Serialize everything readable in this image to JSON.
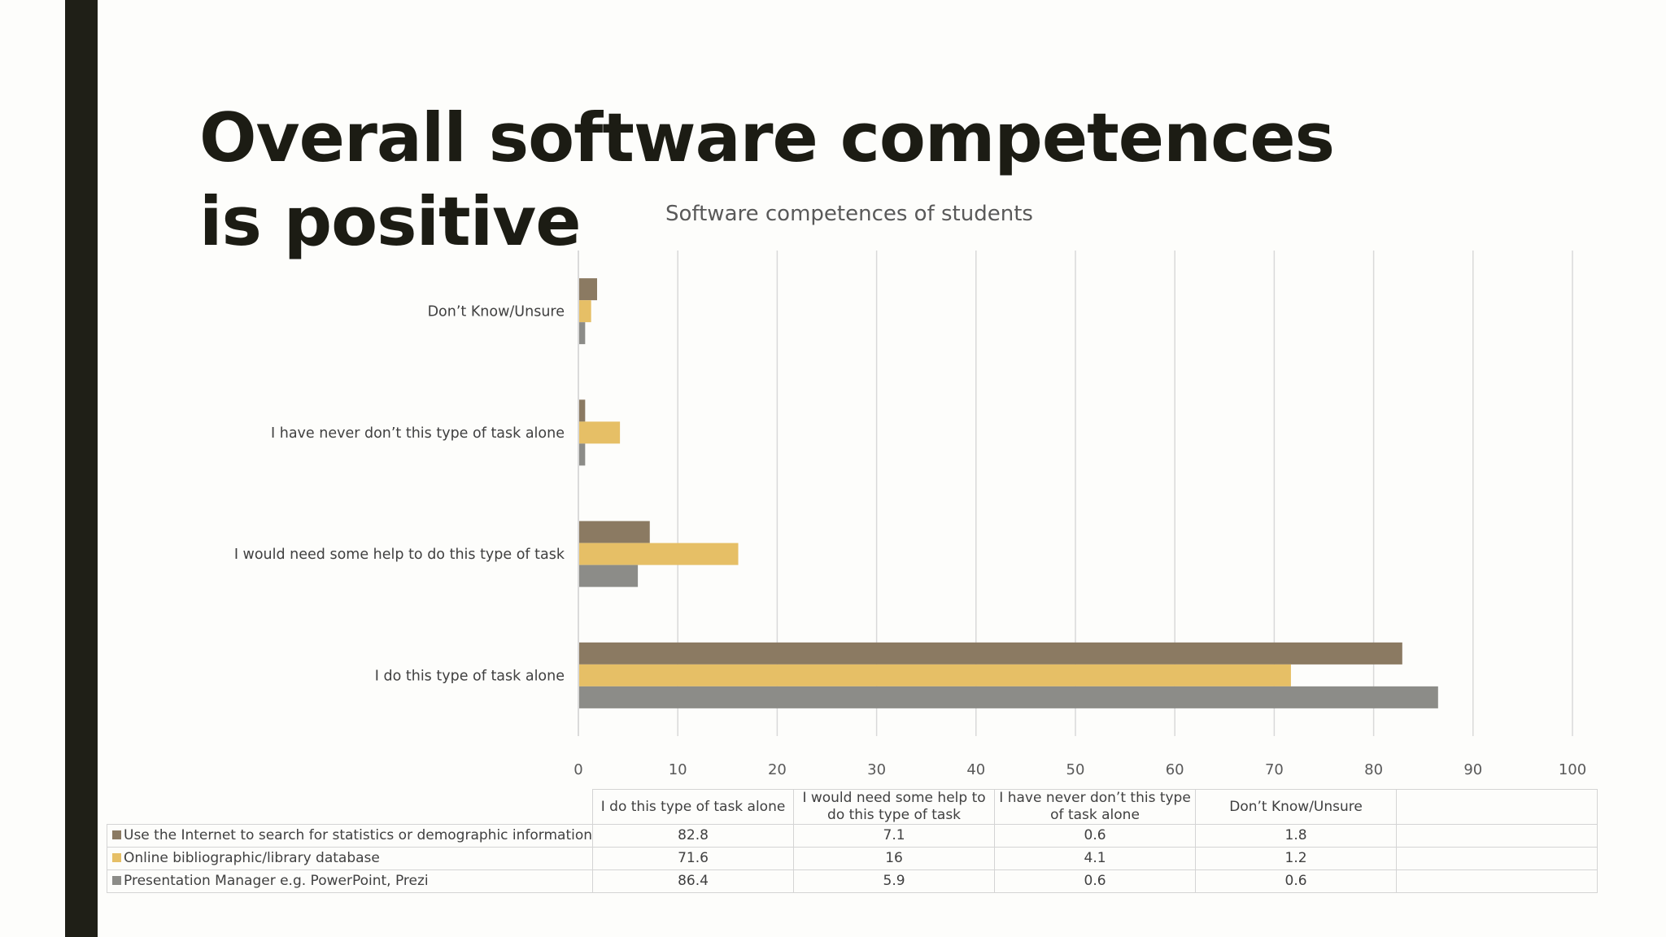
{
  "slide": {
    "title": "Overall software competences is positive"
  },
  "chart_data": {
    "type": "bar",
    "orientation": "horizontal",
    "title": "Software competences of students",
    "categories": [
      "I do this type of task alone",
      "I would need some help to do this type of task",
      "I have never don’t this type of task alone",
      "Don’t Know/Unsure"
    ],
    "series": [
      {
        "name": "Use the Internet to search for statistics or demographic information",
        "color": "#8b7a62",
        "values": [
          82.8,
          7.1,
          0.6,
          1.8
        ]
      },
      {
        "name": "Online bibliographic/library database",
        "color": "#e6bf66",
        "values": [
          71.6,
          16,
          4.1,
          1.2
        ]
      },
      {
        "name": "Presentation Manager e.g. PowerPoint, Prezi",
        "color": "#8c8c88",
        "values": [
          86.4,
          5.9,
          0.6,
          0.6
        ]
      }
    ],
    "xlim": [
      0,
      100
    ],
    "xticks": [
      "0",
      "10",
      "20",
      "30",
      "40",
      "50",
      "60",
      "70",
      "80",
      "90",
      "100"
    ],
    "grid": true,
    "legend": "data-table below chart",
    "table": {
      "headers": [
        "I do this type of task alone",
        "I would need some help to do this type of task",
        "I have never don’t this type of task alone",
        "Don’t Know/Unsure",
        ""
      ],
      "rows": [
        {
          "label": "Use the Internet to search for statistics or demographic information",
          "cells": [
            "82.8",
            "7.1",
            "0.6",
            "1.8",
            ""
          ]
        },
        {
          "label": "Online bibliographic/library database",
          "cells": [
            "71.6",
            "16",
            "4.1",
            "1.2",
            ""
          ]
        },
        {
          "label": "Presentation Manager e.g. PowerPoint, Prezi",
          "cells": [
            "86.4",
            "5.9",
            "0.6",
            "0.6",
            ""
          ]
        }
      ]
    }
  }
}
